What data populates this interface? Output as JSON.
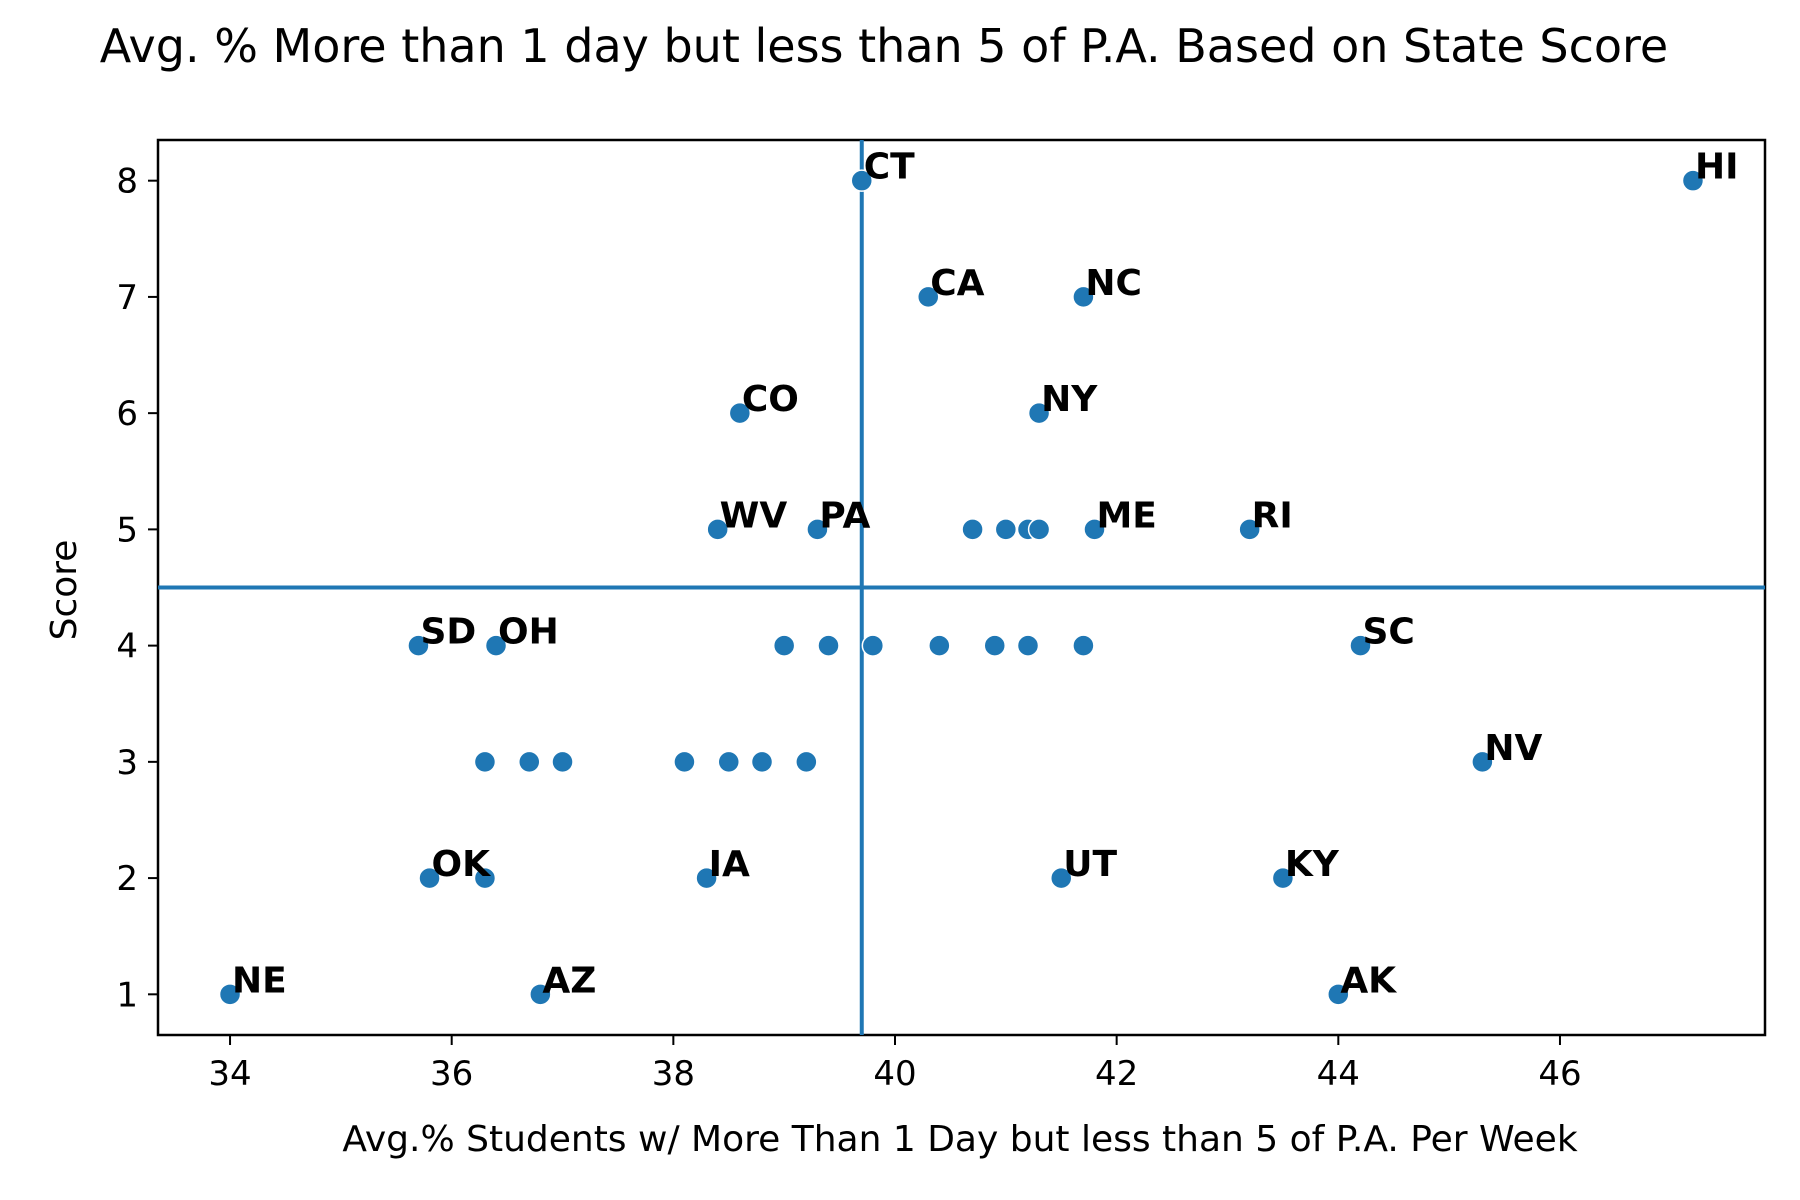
{
  "chart_data": {
    "type": "scatter",
    "title": "Avg. % More than 1 day but less than 5 of P.A. Based on State Score",
    "xlabel": "Avg.% Students w/ More Than 1 Day but less than 5 of P.A. Per Week",
    "ylabel": "Score",
    "xlim": [
      33.35,
      47.85
    ],
    "ylim": [
      0.65,
      8.35
    ],
    "xticks": [
      34,
      36,
      38,
      40,
      42,
      44,
      46
    ],
    "yticks": [
      1,
      2,
      3,
      4,
      5,
      6,
      7,
      8
    ],
    "grid": false,
    "marker_color": "#1f77b4",
    "reference_lines": {
      "vertical_x": 39.7,
      "horizontal_y": 4.5,
      "color": "#1f77b4"
    },
    "points": [
      {
        "x": 39.7,
        "y": 8,
        "label": "CT"
      },
      {
        "x": 47.2,
        "y": 8,
        "label": "HI"
      },
      {
        "x": 40.3,
        "y": 7,
        "label": "CA"
      },
      {
        "x": 41.7,
        "y": 7,
        "label": "NC"
      },
      {
        "x": 38.6,
        "y": 6,
        "label": "CO"
      },
      {
        "x": 41.3,
        "y": 6,
        "label": "NY"
      },
      {
        "x": 38.4,
        "y": 5,
        "label": "WV"
      },
      {
        "x": 39.3,
        "y": 5,
        "label": "PA"
      },
      {
        "x": 40.7,
        "y": 5,
        "label": ""
      },
      {
        "x": 41.0,
        "y": 5,
        "label": ""
      },
      {
        "x": 41.2,
        "y": 5,
        "label": ""
      },
      {
        "x": 41.3,
        "y": 5,
        "label": ""
      },
      {
        "x": 41.8,
        "y": 5,
        "label": "ME"
      },
      {
        "x": 43.2,
        "y": 5,
        "label": "RI"
      },
      {
        "x": 35.7,
        "y": 4,
        "label": "SD"
      },
      {
        "x": 36.4,
        "y": 4,
        "label": "OH"
      },
      {
        "x": 39.0,
        "y": 4,
        "label": ""
      },
      {
        "x": 39.4,
        "y": 4,
        "label": ""
      },
      {
        "x": 39.8,
        "y": 4,
        "label": ""
      },
      {
        "x": 40.4,
        "y": 4,
        "label": ""
      },
      {
        "x": 40.9,
        "y": 4,
        "label": ""
      },
      {
        "x": 41.2,
        "y": 4,
        "label": ""
      },
      {
        "x": 41.7,
        "y": 4,
        "label": ""
      },
      {
        "x": 44.2,
        "y": 4,
        "label": "SC"
      },
      {
        "x": 36.3,
        "y": 3,
        "label": ""
      },
      {
        "x": 36.7,
        "y": 3,
        "label": ""
      },
      {
        "x": 37.0,
        "y": 3,
        "label": ""
      },
      {
        "x": 38.1,
        "y": 3,
        "label": ""
      },
      {
        "x": 38.5,
        "y": 3,
        "label": ""
      },
      {
        "x": 38.8,
        "y": 3,
        "label": ""
      },
      {
        "x": 39.2,
        "y": 3,
        "label": ""
      },
      {
        "x": 45.3,
        "y": 3,
        "label": "NV"
      },
      {
        "x": 35.8,
        "y": 2,
        "label": "OK"
      },
      {
        "x": 36.3,
        "y": 2,
        "label": ""
      },
      {
        "x": 38.3,
        "y": 2,
        "label": "IA"
      },
      {
        "x": 41.5,
        "y": 2,
        "label": "UT"
      },
      {
        "x": 43.5,
        "y": 2,
        "label": "KY"
      },
      {
        "x": 34.0,
        "y": 1,
        "label": "NE"
      },
      {
        "x": 36.8,
        "y": 1,
        "label": "AZ"
      },
      {
        "x": 44.0,
        "y": 1,
        "label": "AK"
      }
    ]
  }
}
